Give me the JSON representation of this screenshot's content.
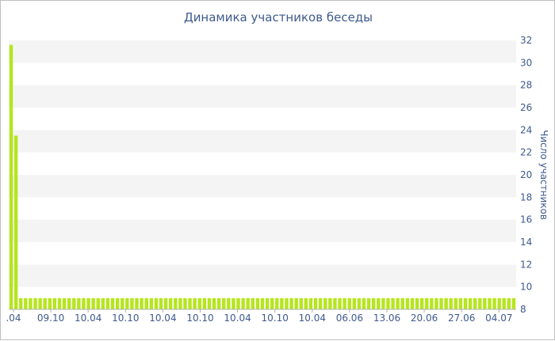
{
  "chart_data": {
    "type": "bar",
    "title": "Динамика участников беседы",
    "xlabel": "",
    "ylabel": "Число участников",
    "ylim": [
      8,
      32
    ],
    "y_ticks": [
      8,
      10,
      12,
      14,
      16,
      18,
      20,
      22,
      24,
      26,
      28,
      30,
      32
    ],
    "y_axis_side": "right",
    "grid": "alternating horizontal bands",
    "x_tick_labels": [
      ".04",
      "09.10",
      "10.04",
      "10.10",
      "10.04",
      "10.10",
      "10.04",
      "10.10",
      "10.04",
      "06.06",
      "13.06",
      "20.06",
      "27.06",
      "04.07"
    ],
    "bar_color": "#b5e61d",
    "series": [
      {
        "values": [
          31.6,
          23.5,
          9,
          9,
          9,
          9,
          9,
          9,
          9,
          9,
          9,
          9,
          9,
          9,
          9,
          9,
          9,
          9,
          9,
          9,
          9,
          9,
          9,
          9,
          9,
          9,
          9,
          9,
          9,
          9,
          9,
          9,
          9,
          9,
          9,
          9,
          9,
          9,
          9,
          9,
          9,
          9,
          9,
          9,
          9,
          9,
          9,
          9,
          9,
          9,
          9,
          9,
          9,
          9,
          9,
          9,
          9,
          9,
          9,
          9,
          9,
          9,
          9,
          9,
          9,
          9,
          9,
          9,
          9,
          9,
          9,
          9,
          9,
          9,
          9,
          9,
          9,
          9,
          9,
          9,
          9,
          9,
          9,
          9,
          9,
          9,
          9,
          9,
          9,
          9,
          9,
          9,
          9,
          9,
          9,
          9,
          9,
          9,
          9,
          9,
          9,
          9,
          9,
          9,
          9
        ]
      }
    ]
  }
}
